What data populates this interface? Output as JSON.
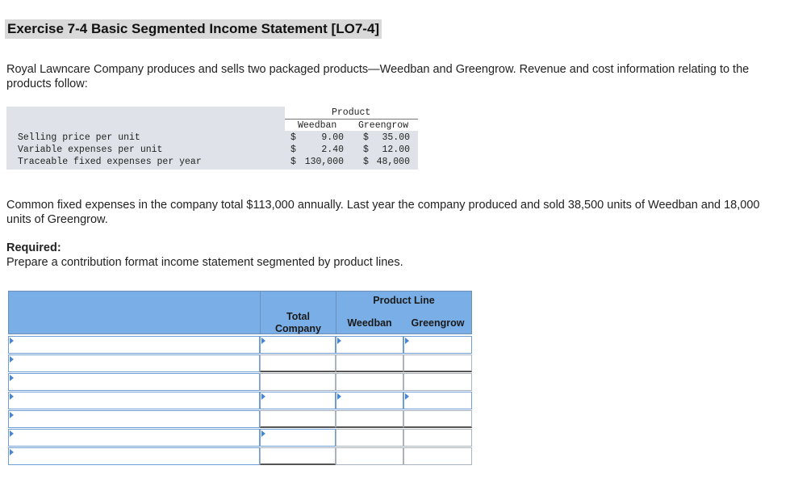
{
  "title": "Exercise 7-4 Basic Segmented Income Statement [LO7-4]",
  "intro": "Royal Lawncare Company produces and sells two packaged products—Weedban and Greengrow. Revenue and cost information relating to the products follow:",
  "info_table": {
    "group_header": "Product",
    "col1": "Weedban",
    "col2": "Greengrow",
    "rows": [
      {
        "label": "Selling price per unit",
        "c1_sym": "$",
        "c1_val": "9.00",
        "c2_sym": "$",
        "c2_val": "35.00"
      },
      {
        "label": "Variable expenses per unit",
        "c1_sym": "$",
        "c1_val": "2.40",
        "c2_sym": "$",
        "c2_val": "12.00"
      },
      {
        "label": "Traceable fixed expenses per year",
        "c1_sym": "$",
        "c1_val": "130,000",
        "c2_sym": "$",
        "c2_val": "48,000"
      }
    ]
  },
  "common_fixed": "Common fixed expenses in the company total $113,000 annually. Last year the company produced and sold 38,500 units of Weedban and 18,000 units of Greengrow.",
  "required_label": "Required:",
  "required_text": "Prepare a contribution format income statement segmented by product lines.",
  "answer_table": {
    "product_line": "Product Line",
    "total_line1": "Total",
    "total_line2": "Company",
    "weedban": "Weedban",
    "greengrow": "Greengrow"
  }
}
